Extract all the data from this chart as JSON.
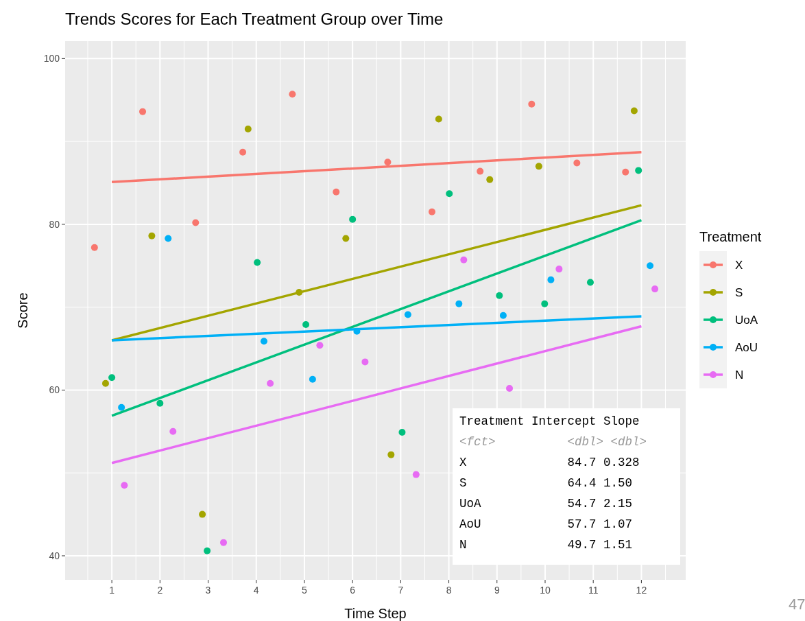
{
  "chart_data": {
    "type": "scatter",
    "title": "Trends Scores for Each Treatment Group over Time",
    "xlabel": "Time Step",
    "ylabel": "Score",
    "legend_title": "Treatment",
    "xlim": [
      0.03,
      12.92
    ],
    "ylim": [
      37.1,
      102.1
    ],
    "xticks": [
      1,
      2,
      3,
      4,
      5,
      6,
      7,
      8,
      9,
      10,
      11,
      12
    ],
    "yticks": [
      40,
      60,
      80,
      100
    ],
    "grid": true,
    "legend": "right",
    "marker": "circle",
    "series": [
      {
        "name": "X",
        "color": "#f8766d",
        "x": [
          0.64,
          1.64,
          2.74,
          3.72,
          4.75,
          5.66,
          6.73,
          7.65,
          8.65,
          9.72,
          10.66,
          11.67
        ],
        "values": [
          77.2,
          93.6,
          80.2,
          88.7,
          95.7,
          83.9,
          87.5,
          81.5,
          86.4,
          94.5,
          87.4,
          86.3
        ]
      },
      {
        "name": "S",
        "color": "#a3a500",
        "x": [
          0.87,
          1.83,
          2.88,
          3.83,
          4.89,
          5.86,
          6.8,
          7.79,
          8.85,
          9.87,
          11.85
        ],
        "values": [
          60.8,
          78.6,
          45.0,
          91.5,
          71.8,
          78.3,
          52.2,
          92.7,
          85.4,
          87.0,
          93.7
        ]
      },
      {
        "name": "UoA",
        "color": "#00bf7d",
        "x": [
          1.0,
          2.0,
          2.98,
          4.02,
          5.03,
          6.0,
          7.03,
          8.01,
          9.05,
          9.99,
          10.94,
          11.94
        ],
        "values": [
          61.5,
          58.4,
          40.6,
          75.4,
          67.9,
          80.6,
          54.9,
          83.7,
          71.4,
          70.4,
          73.0,
          86.5
        ]
      },
      {
        "name": "AoU",
        "color": "#00b0f6",
        "x": [
          1.2,
          2.17,
          4.16,
          5.17,
          6.09,
          7.15,
          8.21,
          9.13,
          10.12,
          12.18
        ],
        "values": [
          57.9,
          78.3,
          65.9,
          61.3,
          67.1,
          69.1,
          70.4,
          69.0,
          73.3,
          75.0
        ]
      },
      {
        "name": "N",
        "color": "#e76bf3",
        "x": [
          1.26,
          2.27,
          3.32,
          4.29,
          5.32,
          6.26,
          7.32,
          8.31,
          9.26,
          10.29,
          12.28
        ],
        "values": [
          48.5,
          55.0,
          41.6,
          60.8,
          65.4,
          63.4,
          49.8,
          75.7,
          60.2,
          74.6,
          72.2
        ]
      },
      {
        "type": "line",
        "marker": "none",
        "color": "#f8766d",
        "x": [
          1,
          12
        ],
        "values": [
          85.1,
          88.7
        ]
      },
      {
        "type": "line",
        "marker": "none",
        "color": "#a3a500",
        "x": [
          1,
          12
        ],
        "values": [
          66.0,
          82.3
        ]
      },
      {
        "type": "line",
        "marker": "none",
        "color": "#00bf7d",
        "x": [
          1,
          12
        ],
        "values": [
          56.9,
          80.5
        ]
      },
      {
        "type": "line",
        "marker": "none",
        "color": "#00b0f6",
        "x": [
          1,
          12
        ],
        "values": [
          66.0,
          68.9
        ]
      },
      {
        "type": "line",
        "marker": "none",
        "color": "#e76bf3",
        "x": [
          1,
          12
        ],
        "values": [
          51.2,
          67.7
        ]
      }
    ],
    "annotations": [
      "Treatment Intercept Slope",
      "<fct>          <dbl> <dbl>",
      "X              84.7 0.328",
      "S              64.4 1.50",
      "UoA            54.7 2.15",
      "AoU            57.7 1.07",
      "N              49.7 1.51",
      "47"
    ]
  }
}
